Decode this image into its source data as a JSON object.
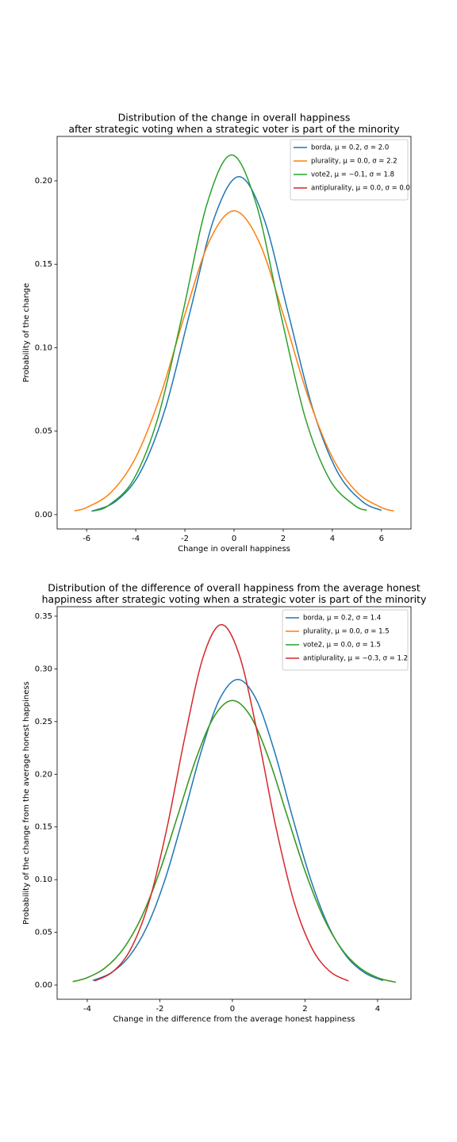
{
  "chart_data": [
    {
      "type": "line",
      "title": [
        "Distribution of the change in overall happiness",
        "after strategic voting when a strategic voter is part of the minority"
      ],
      "xlabel": "Change in overall happiness",
      "ylabel": "Probability of the change",
      "xlim": [
        -7.2,
        7.2
      ],
      "ylim": [
        -0.0086,
        0.2266
      ],
      "xticks": [
        -6,
        -4,
        -2,
        0,
        2,
        4,
        6
      ],
      "yticks": [
        {
          "value": 0,
          "label": "0.00"
        },
        {
          "value": 0.05,
          "label": "0.05"
        },
        {
          "value": 0.1,
          "label": "0.10"
        },
        {
          "value": 0.15,
          "label": "0.15"
        },
        {
          "value": 0.2,
          "label": "0.20"
        }
      ],
      "legend": "upper right",
      "series": [
        {
          "name": "borda, μ = 0.2, σ = 2.0",
          "color": "#1f77b4",
          "x": [
            -5.8,
            -4.8,
            -3.8,
            -2.8,
            -1.8,
            -0.8,
            0.2,
            1.2,
            2.2,
            3.2,
            4.2,
            5.2,
            6.0
          ],
          "values": [
            0.002,
            0.0081,
            0.0258,
            0.0635,
            0.121,
            0.178,
            0.2025,
            0.178,
            0.121,
            0.0635,
            0.0258,
            0.0081,
            0.0025
          ]
        },
        {
          "name": "plurality, μ = 0.0, σ = 2.2",
          "color": "#ff7f0e",
          "x": [
            -6.5,
            -6,
            -5,
            -4,
            -3,
            -2,
            -1,
            0,
            1,
            2,
            3,
            4,
            5,
            6,
            6.5
          ],
          "values": [
            0.00222,
            0.00426,
            0.0134,
            0.0343,
            0.0712,
            0.12,
            0.164,
            0.182,
            0.164,
            0.12,
            0.0712,
            0.0343,
            0.0134,
            0.00426,
            0.00222
          ]
        },
        {
          "name": "vote2, μ = −0.1, σ = 1.8",
          "color": "#2ca02c",
          "x": [
            -5.7,
            -5.1,
            -4.1,
            -3.1,
            -2.1,
            -1.1,
            -0.1,
            0.9,
            1.9,
            2.9,
            3.9,
            4.9,
            5.4
          ],
          "values": [
            0.0022,
            0.00559,
            0.0208,
            0.0579,
            0.12,
            0.1862,
            0.2155,
            0.1862,
            0.12,
            0.0579,
            0.0208,
            0.00559,
            0.0026
          ]
        },
        {
          "name": "antiplurality, μ = 0.0, σ = 0.0",
          "color": "#d62728",
          "x": [],
          "values": []
        }
      ]
    },
    {
      "type": "line",
      "title": [
        "Distribution of the difference of overall happiness from the average honest",
        "happiness after strategic voting when a strategic voter is part of the minority"
      ],
      "xlabel": "Change in the difference from the average honest happiness",
      "ylabel": "Probability of the change from the average honest happiness",
      "xlim": [
        -4.83,
        4.92
      ],
      "ylim": [
        -0.0135,
        0.359
      ],
      "xticks": [
        -4,
        -2,
        0,
        2,
        4
      ],
      "yticks": [
        {
          "value": 0,
          "label": "0.00"
        },
        {
          "value": 0.05,
          "label": "0.05"
        },
        {
          "value": 0.1,
          "label": "0.10"
        },
        {
          "value": 0.15,
          "label": "0.15"
        },
        {
          "value": 0.2,
          "label": "0.20"
        },
        {
          "value": 0.25,
          "label": "0.25"
        },
        {
          "value": 0.3,
          "label": "0.30"
        },
        {
          "value": 0.35,
          "label": "0.35"
        }
      ],
      "legend": "upper right",
      "series": [
        {
          "name": "borda, μ = 0.2, σ = 1.4",
          "color": "#1f77b4",
          "x": [
            -3.85,
            -3.35,
            -2.85,
            -2.35,
            -1.85,
            -1.35,
            -0.85,
            -0.35,
            0.15,
            0.65,
            1.15,
            1.65,
            2.15,
            2.65,
            3.15,
            3.65,
            4.15
          ],
          "values": [
            0.00424,
            0.0114,
            0.0269,
            0.0557,
            0.1009,
            0.16,
            0.2227,
            0.2715,
            0.29,
            0.2715,
            0.2227,
            0.16,
            0.1009,
            0.0557,
            0.0269,
            0.0114,
            0.00424
          ]
        },
        {
          "name": "plurality, μ = 0.0, σ = 1.5",
          "color": "#ff7f0e",
          "x": [
            -4.4,
            -4,
            -3.5,
            -3,
            -2.5,
            -2,
            -1.5,
            -1,
            -0.5,
            0,
            0.5,
            1,
            1.5,
            2,
            2.5,
            3,
            3.5,
            4,
            4.5
          ],
          "values": [
            0.00325,
            0.007,
            0.0165,
            0.0346,
            0.0648,
            0.1083,
            0.1615,
            0.215,
            0.255,
            0.27,
            0.255,
            0.215,
            0.1615,
            0.1083,
            0.0648,
            0.0346,
            0.0165,
            0.007,
            0.00265
          ]
        },
        {
          "name": "vote2, μ = 0.0, σ = 1.5",
          "color": "#2ca02c",
          "x": [
            -4.4,
            -4,
            -3.5,
            -3,
            -2.5,
            -2,
            -1.5,
            -1,
            -0.5,
            0,
            0.5,
            1,
            1.5,
            2,
            2.5,
            3,
            3.5,
            4,
            4.5
          ],
          "values": [
            0.00325,
            0.007,
            0.0165,
            0.0346,
            0.0648,
            0.1083,
            0.1615,
            0.215,
            0.255,
            0.27,
            0.255,
            0.215,
            0.1615,
            0.1083,
            0.0648,
            0.0346,
            0.0165,
            0.007,
            0.00265
          ]
        },
        {
          "name": "antiplurality, μ = −0.3, σ = 1.2",
          "color": "#d62728",
          "x": [
            -3.8,
            -3.3,
            -2.8,
            -2.3,
            -1.8,
            -1.3,
            -0.8,
            -0.3,
            0.2,
            0.7,
            1.2,
            1.7,
            2.2,
            2.7,
            3.2
          ],
          "values": [
            0.0038,
            0.0125,
            0.0343,
            0.0786,
            0.1496,
            0.237,
            0.312,
            0.342,
            0.312,
            0.237,
            0.1496,
            0.0786,
            0.0343,
            0.0125,
            0.0038
          ]
        }
      ]
    }
  ]
}
